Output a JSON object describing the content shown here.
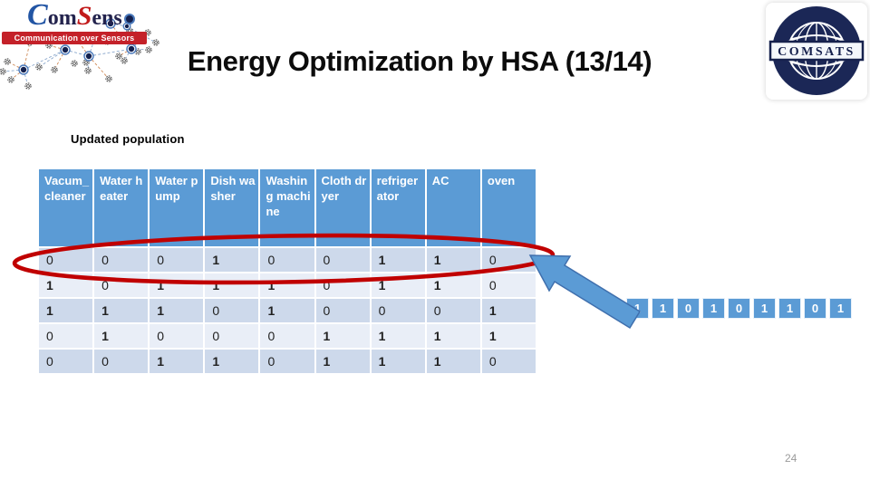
{
  "slide": {
    "title": "Energy Optimization by HSA (13/14)",
    "page_number": "24"
  },
  "comsens_logo": {
    "brand_c": "C",
    "brand_om": "om",
    "brand_s": "S",
    "brand_ens": "ens",
    "tagline": "Communication over Sensors"
  },
  "comsats_logo": {
    "label": "COMSATS"
  },
  "table": {
    "caption": "Updated population",
    "columns": [
      "Vacum_cleaner",
      "Water heater",
      "Water pump",
      "Dish washer",
      "Washing machine",
      "Cloth dryer",
      "refrigerator",
      "AC",
      "oven"
    ],
    "rows": [
      [
        "0",
        "0",
        "0",
        "1",
        "0",
        "0",
        "1",
        "1",
        "0"
      ],
      [
        "1",
        "0",
        "1",
        "1",
        "1",
        "0",
        "1",
        "1",
        "0"
      ],
      [
        "1",
        "1",
        "1",
        "0",
        "1",
        "0",
        "0",
        "0",
        "1"
      ],
      [
        "0",
        "1",
        "0",
        "0",
        "0",
        "1",
        "1",
        "1",
        "1"
      ],
      [
        "0",
        "0",
        "1",
        "1",
        "0",
        "1",
        "1",
        "1",
        "0"
      ]
    ]
  },
  "harmony_vector": {
    "values": [
      "1",
      "1",
      "0",
      "1",
      "0",
      "1",
      "1",
      "0",
      "1"
    ]
  },
  "colors": {
    "header_blue": "#5B9BD5",
    "row_dark": "#CDD9EB",
    "row_light": "#E9EEF7",
    "highlight_red": "#C00000",
    "arrow_blue": "#5B9BD5",
    "arrow_edge": "#3F6FAD",
    "comsats_navy": "#1B2756",
    "comsens_blue": "#2255A4",
    "comsens_red": "#C21B1B"
  }
}
